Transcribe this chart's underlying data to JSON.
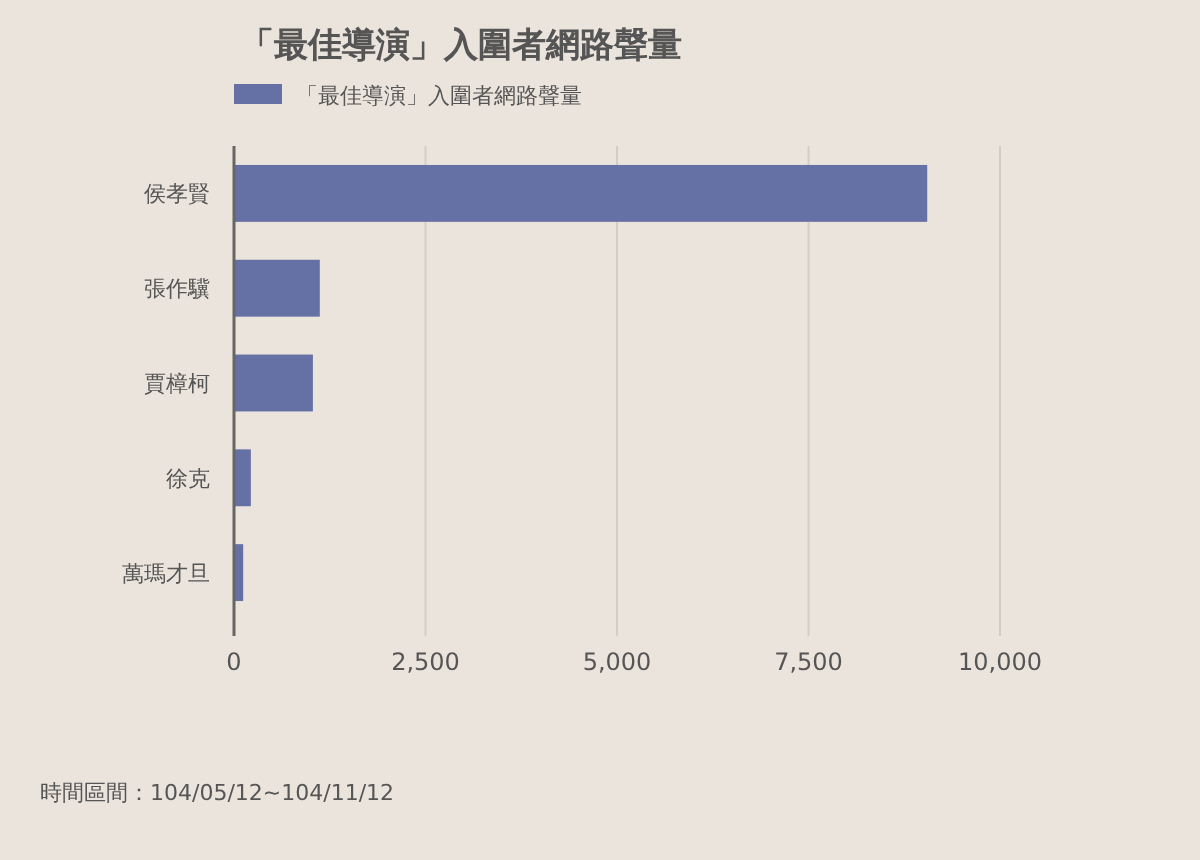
{
  "chart_data": {
    "type": "bar",
    "orientation": "horizontal",
    "title": "「最佳導演」入圍者網路聲量",
    "categories": [
      "侯孝賢",
      "張作驥",
      "賈樟柯",
      "徐克",
      "萬瑪才旦"
    ],
    "series": [
      {
        "name": "「最佳導演」入圍者網路聲量",
        "color": "#6570a4",
        "values": [
          9050,
          1120,
          1030,
          220,
          120
        ]
      }
    ],
    "xlim": [
      0,
      10000
    ],
    "xticks": [
      {
        "value": 0,
        "label": "0"
      },
      {
        "value": 2500,
        "label": "2,500"
      },
      {
        "value": 5000,
        "label": "5,000"
      },
      {
        "value": 7500,
        "label": "7,500"
      },
      {
        "value": 10000,
        "label": "10,000"
      }
    ],
    "grid": "x",
    "legend": "top left",
    "annotations": [
      "時間區間：104/05/12~104/11/12"
    ]
  }
}
